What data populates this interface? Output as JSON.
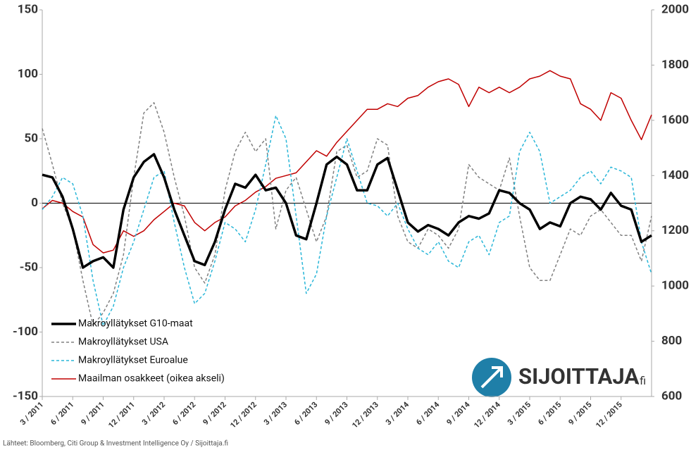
{
  "chart_data": {
    "type": "line",
    "categories": [
      "3 / 2011",
      null,
      null,
      "6 / 2011",
      null,
      null,
      "9 / 2011",
      null,
      null,
      "12 / 2011",
      null,
      null,
      "3 / 2012",
      null,
      null,
      "6 / 2012",
      null,
      null,
      "9 / 2012",
      null,
      null,
      "12 / 2012",
      null,
      null,
      "3 / 2013",
      null,
      null,
      "6 / 2013",
      null,
      null,
      "9 / 2013",
      null,
      null,
      "12 / 2013",
      null,
      null,
      "3 / 2014",
      null,
      null,
      "6 / 2014",
      null,
      null,
      "9 / 2014",
      null,
      null,
      "12 / 2014",
      null,
      null,
      "3 / 2015",
      null,
      null,
      "6 / 2015",
      null,
      null,
      "9 / 2015",
      null,
      null,
      "12 / 2015",
      null,
      null,
      null
    ],
    "series": [
      {
        "name": "Makroyllätykset G10-maat",
        "color": "#000000",
        "line_style": "solid",
        "width": 3.5,
        "values": [
          22,
          20,
          5,
          -20,
          -50,
          -45,
          -42,
          -50,
          -5,
          20,
          32,
          38,
          20,
          -5,
          -25,
          -45,
          -48,
          -30,
          -5,
          15,
          12,
          22,
          10,
          12,
          0,
          -25,
          -28,
          0,
          30,
          36,
          30,
          10,
          10,
          30,
          35,
          10,
          -15,
          -22,
          -17,
          -20,
          -25,
          -15,
          -10,
          -12,
          -8,
          10,
          8,
          0,
          -5,
          -20,
          -15,
          -18,
          0,
          5,
          3,
          -5,
          8,
          -2,
          -5,
          -30,
          -25
        ]
      },
      {
        "name": "Makroyllätykset USA",
        "color": "#808080",
        "line_style": "dashed",
        "width": 1.5,
        "values": [
          58,
          30,
          0,
          -20,
          -60,
          -95,
          -85,
          -70,
          -40,
          20,
          70,
          78,
          55,
          20,
          -10,
          -50,
          -62,
          -40,
          10,
          40,
          55,
          40,
          50,
          -20,
          10,
          20,
          -5,
          -30,
          -10,
          40,
          45,
          20,
          25,
          50,
          45,
          -10,
          -30,
          -35,
          -20,
          -25,
          -35,
          -20,
          30,
          20,
          15,
          10,
          35,
          -10,
          -50,
          -60,
          -60,
          -40,
          -20,
          -25,
          -10,
          -5,
          -15,
          -25,
          -25,
          -45,
          -10
        ]
      },
      {
        "name": "Makroyllätykset Euroalue",
        "color": "#29b6d8",
        "line_style": "dashed",
        "width": 1.5,
        "values": [
          -5,
          5,
          20,
          15,
          -10,
          -60,
          -95,
          -80,
          -50,
          -30,
          -5,
          20,
          25,
          -15,
          -50,
          -78,
          -70,
          -45,
          -15,
          -20,
          -30,
          -5,
          30,
          68,
          50,
          -10,
          -70,
          -55,
          -10,
          20,
          50,
          25,
          0,
          -2,
          -10,
          0,
          -20,
          -35,
          -40,
          -30,
          -45,
          -50,
          -30,
          -25,
          -40,
          -15,
          -10,
          40,
          55,
          40,
          0,
          5,
          10,
          20,
          25,
          15,
          28,
          25,
          20,
          -30,
          -55
        ]
      },
      {
        "name": "Maailman osakkeet (oikea akseli)",
        "color": "#c00000",
        "line_style": "solid",
        "width": 1.5,
        "axis": "y2",
        "values": [
          1280,
          1310,
          1300,
          1270,
          1250,
          1150,
          1120,
          1130,
          1200,
          1180,
          1200,
          1240,
          1270,
          1300,
          1290,
          1230,
          1200,
          1230,
          1250,
          1290,
          1310,
          1340,
          1360,
          1390,
          1400,
          1410,
          1450,
          1490,
          1470,
          1520,
          1560,
          1600,
          1640,
          1640,
          1660,
          1650,
          1680,
          1690,
          1720,
          1740,
          1750,
          1730,
          1650,
          1720,
          1700,
          1720,
          1700,
          1720,
          1750,
          1760,
          1780,
          1760,
          1750,
          1660,
          1640,
          1600,
          1700,
          1680,
          1600,
          1530,
          1620
        ]
      }
    ],
    "ylim": [
      -150,
      150
    ],
    "yticks": [
      -150,
      -100,
      -50,
      0,
      50,
      100,
      150
    ],
    "y2lim": [
      600,
      2000
    ],
    "y2ticks": [
      600,
      800,
      1000,
      1200,
      1400,
      1600,
      1800,
      2000
    ],
    "zero_line": true,
    "legend": "lower left",
    "source": "Lähteet: Bloomberg, Citi Group & Investment Intelligence Oy / Sijoittaja.fi",
    "logo": {
      "name": "SIJOITTAJA",
      "suffix": ".fi"
    }
  }
}
